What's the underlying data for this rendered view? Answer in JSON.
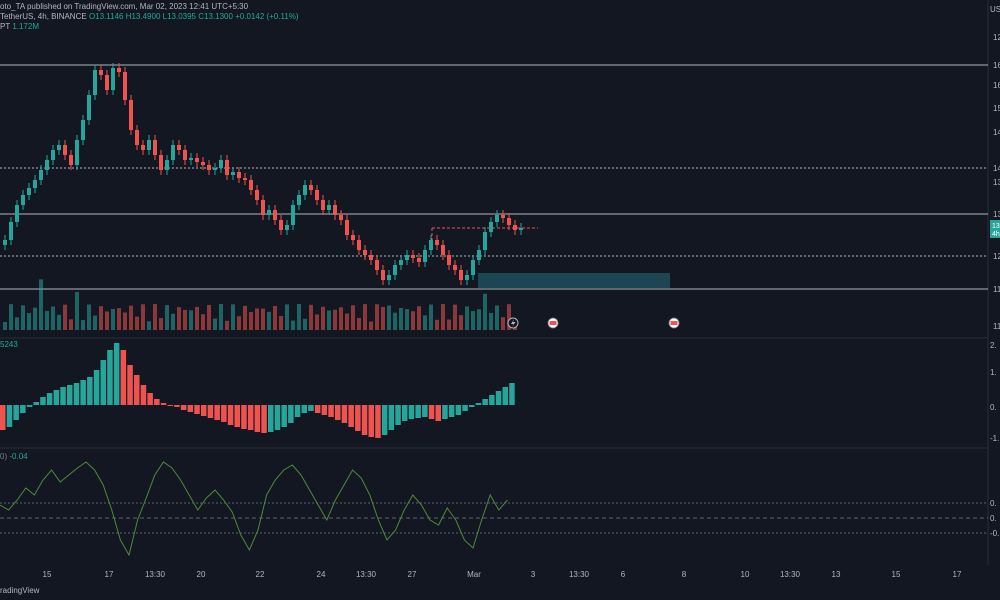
{
  "header": {
    "line1_name": "oto_TA published on TradingView.com, Mar 02, 2023 12:41 UTC+5:30",
    "line2_symbol": "TetherUS, 4h, BINANCE",
    "line2_ohlc": "O13.1146 H13.4900 L13.0395 C13.1300 +0.0142 (+0.11%)",
    "line3_vol_label": "PT",
    "line3_vol_value": "1.172M"
  },
  "oscillator1": {
    "label": "5243"
  },
  "oscillator2": {
    "label_prefix": "0)",
    "label_value": "-0.04"
  },
  "right_axis": {
    "currency": "US",
    "price_labels": [
      "12",
      "16",
      "16",
      "15",
      "14",
      "14",
      "13",
      "13",
      "12",
      "12",
      "11",
      "11"
    ],
    "current_tag": "13",
    "current_tag2": "4h",
    "osc1_labels": [
      "2.",
      "1.",
      "0.",
      "-1."
    ],
    "osc2_labels": [
      "0.",
      "0.",
      "-0."
    ]
  },
  "date_axis": [
    "15",
    "17",
    "13:30",
    "20",
    "22",
    "24",
    "13:30",
    "27",
    "Mar",
    "3",
    "13:30",
    "6",
    "8",
    "10",
    "13:30",
    "13",
    "15",
    "17"
  ],
  "footer": {
    "text": "radingView"
  },
  "colors": {
    "bull": "#26a69a",
    "bear": "#ef5350",
    "background": "#131722",
    "level_line": "#b2b5be",
    "zone": "#1e4f5c"
  },
  "icons": [
    "lightning-icon",
    "calendar-flag-icon",
    "calendar-flag-icon"
  ]
}
